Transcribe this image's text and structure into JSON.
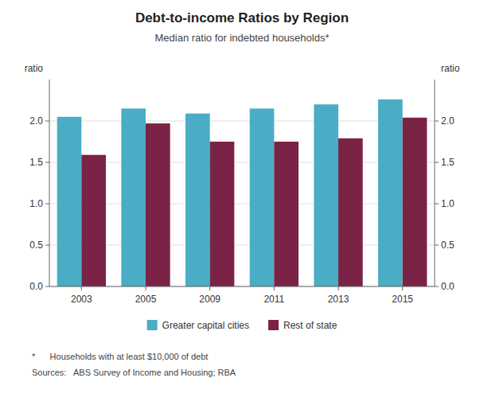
{
  "chart_data": {
    "type": "bar",
    "title": "Debt-to-income Ratios by Region",
    "subtitle": "Median ratio for indebted households*",
    "ylabel": "ratio",
    "y2label": "ratio",
    "categories": [
      "2003",
      "2005",
      "2009",
      "2011",
      "2013",
      "2015"
    ],
    "series": [
      {
        "name": "Greater capital cities",
        "color": "#4BACC6",
        "values": [
          2.05,
          2.15,
          2.09,
          2.15,
          2.2,
          2.26
        ]
      },
      {
        "name": "Rest of state",
        "color": "#7B2346",
        "values": [
          1.59,
          1.97,
          1.75,
          1.75,
          1.79,
          2.04
        ]
      }
    ],
    "ylim": [
      0.0,
      2.5
    ],
    "yticks": [
      {
        "value": 0.0,
        "label": "0.0"
      },
      0.5,
      {
        "value": 1.0,
        "label": "1.0"
      },
      1.5,
      {
        "value": 2.0,
        "label": "2.0"
      }
    ],
    "y2lim": [
      0.0,
      2.5
    ],
    "y2ticks": [
      {
        "value": 0.0,
        "label": "0.0"
      },
      0.5,
      {
        "value": 1.0,
        "label": "1.0"
      },
      1.5,
      {
        "value": 2.0,
        "label": "2.0"
      }
    ],
    "grid": true,
    "legend": "bottom",
    "annotations": [
      "*      Households with at least $10,000 of debt",
      "Sources:   ABS Survey of Income and Housing; RBA"
    ]
  }
}
